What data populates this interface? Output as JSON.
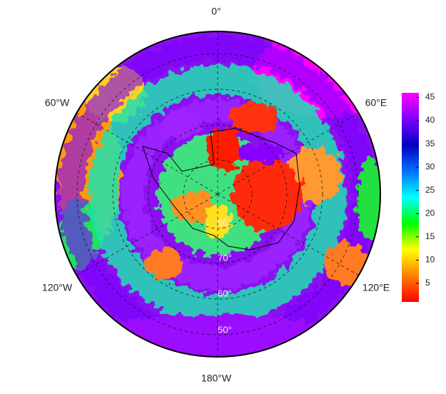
{
  "chart_data": {
    "type": "polar-map",
    "longitude_labels": [
      "0°",
      "60°W",
      "60°E",
      "120°W",
      "120°E",
      "180°W"
    ],
    "latitude_labels": [
      "80°",
      "70°",
      "60°",
      "50°"
    ],
    "colorbar": {
      "lim": [
        1,
        46
      ],
      "ticks": [
        5,
        10,
        15,
        20,
        25,
        30,
        35,
        40,
        45
      ],
      "colors": [
        "#ff0000",
        "#ff8000",
        "#ffff00",
        "#00ff00",
        "#00ffff",
        "#0070ff",
        "#0000c0",
        "#8000ff",
        "#ff00ff"
      ]
    }
  }
}
